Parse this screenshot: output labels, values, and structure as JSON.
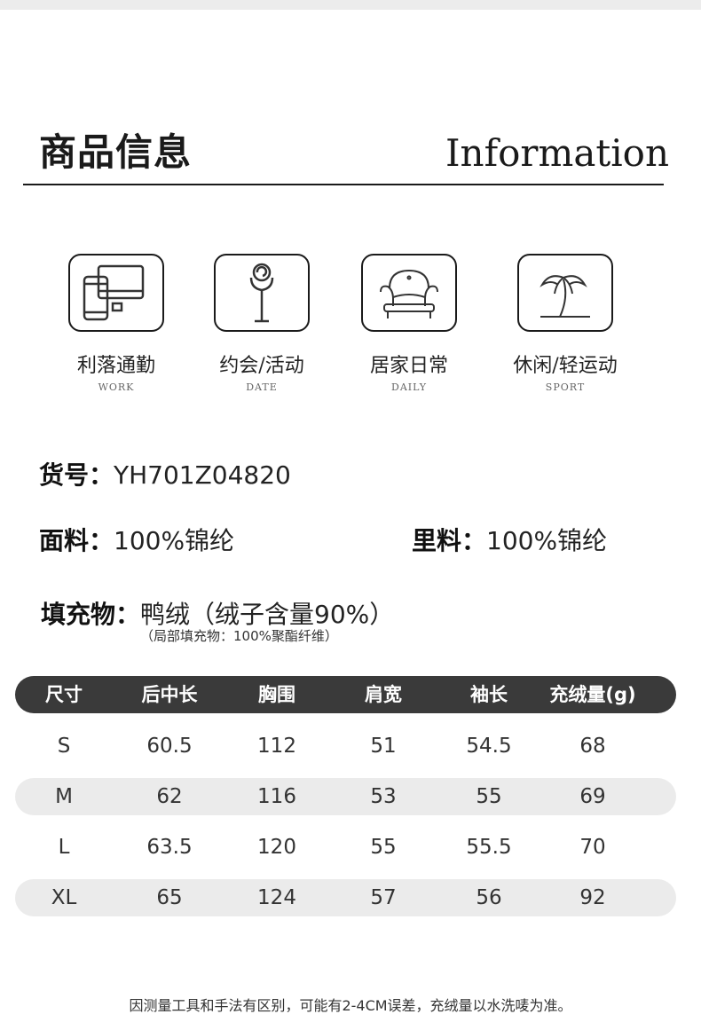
{
  "header": {
    "title_cn": "商品信息",
    "title_en": "Information"
  },
  "scenes": [
    {
      "icon": "devices-icon",
      "cn": "利落通勤",
      "en": "WORK"
    },
    {
      "icon": "rose-icon",
      "cn": "约会/活动",
      "en": "DATE"
    },
    {
      "icon": "armchair-icon",
      "cn": "居家日常",
      "en": "DAILY"
    },
    {
      "icon": "palm-tree-icon",
      "cn": "休闲/轻运动",
      "en": "SPORT"
    }
  ],
  "product": {
    "sku_label": "货号：",
    "sku": "YH701Z04820",
    "fabric_label": "面料：",
    "fabric": "100%锦纶",
    "lining_label": "里料：",
    "lining": "100%锦纶",
    "filling_label": "填充物：",
    "filling": "鸭绒（绒子含量90%）",
    "filling_note": "（局部填充物：100%聚酯纤维）"
  },
  "size_table": {
    "headers": [
      "尺寸",
      "后中长",
      "胸围",
      "肩宽",
      "袖长",
      "充绒量(g)"
    ],
    "rows": [
      [
        "S",
        "60.5",
        "112",
        "51",
        "54.5",
        "68"
      ],
      [
        "M",
        "62",
        "116",
        "53",
        "55",
        "69"
      ],
      [
        "L",
        "63.5",
        "120",
        "55",
        "55.5",
        "70"
      ],
      [
        "XL",
        "65",
        "124",
        "57",
        "56",
        "92"
      ]
    ]
  },
  "footer_note": "因测量工具和手法有区别，可能有2-4CM误差，充绒量以水洗唛为准。"
}
